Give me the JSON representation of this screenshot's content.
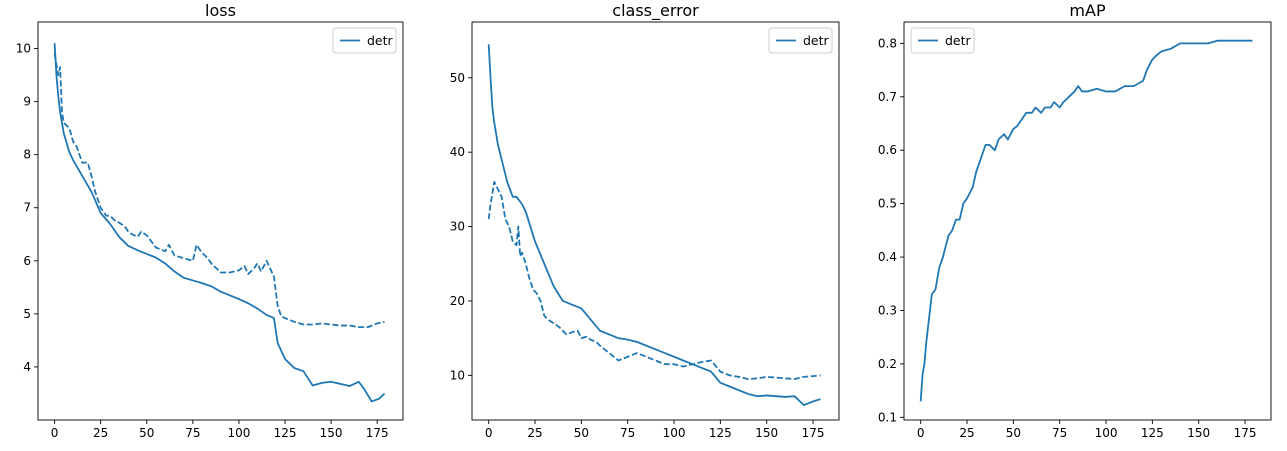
{
  "colors": {
    "series": "#1f77b4",
    "axes": "#000000",
    "legend_border": "#cccccc",
    "background": "#ffffff"
  },
  "chart_data": [
    {
      "type": "line",
      "title": "loss",
      "xlabel": "",
      "ylabel": "",
      "xlim": [
        -9,
        189
      ],
      "ylim": [
        3.0,
        10.5
      ],
      "xticks": [
        0,
        25,
        50,
        75,
        100,
        125,
        150,
        175
      ],
      "yticks": [
        4,
        5,
        6,
        7,
        8,
        9,
        10
      ],
      "grid": false,
      "legend": {
        "entries": [
          "detr"
        ],
        "placement": "top-right"
      },
      "series": [
        {
          "name": "detr",
          "style": "solid",
          "x": [
            0,
            1,
            2,
            3,
            5,
            8,
            10,
            15,
            20,
            25,
            30,
            35,
            40,
            45,
            50,
            55,
            60,
            65,
            70,
            75,
            80,
            85,
            90,
            95,
            100,
            105,
            110,
            115,
            119,
            121,
            125,
            130,
            135,
            140,
            145,
            150,
            155,
            160,
            165,
            168,
            172,
            176,
            179
          ],
          "y": [
            10.1,
            9.5,
            9.1,
            8.8,
            8.4,
            8.05,
            7.9,
            7.6,
            7.3,
            6.9,
            6.7,
            6.45,
            6.28,
            6.2,
            6.13,
            6.06,
            5.95,
            5.8,
            5.68,
            5.63,
            5.58,
            5.52,
            5.42,
            5.35,
            5.28,
            5.2,
            5.1,
            4.98,
            4.92,
            4.45,
            4.15,
            3.98,
            3.92,
            3.65,
            3.7,
            3.72,
            3.68,
            3.64,
            3.72,
            3.58,
            3.35,
            3.4,
            3.5
          ]
        },
        {
          "name": "detr",
          "style": "dashed",
          "x": [
            0,
            1,
            2,
            3,
            4,
            5,
            8,
            10,
            12,
            15,
            18,
            20,
            22,
            25,
            28,
            30,
            33,
            35,
            38,
            40,
            42,
            45,
            47,
            50,
            55,
            60,
            62,
            65,
            70,
            73,
            75,
            77,
            80,
            83,
            85,
            88,
            90,
            95,
            100,
            103,
            105,
            108,
            110,
            112,
            115,
            117,
            119,
            121,
            123,
            125,
            130,
            135,
            140,
            145,
            150,
            155,
            160,
            165,
            170,
            175,
            179
          ],
          "y": [
            9.9,
            9.7,
            9.5,
            9.65,
            8.8,
            8.6,
            8.5,
            8.25,
            8.15,
            7.85,
            7.85,
            7.6,
            7.3,
            7.0,
            6.85,
            6.85,
            6.75,
            6.72,
            6.65,
            6.55,
            6.5,
            6.45,
            6.55,
            6.48,
            6.25,
            6.18,
            6.3,
            6.1,
            6.05,
            6.02,
            6.0,
            6.3,
            6.15,
            6.05,
            5.95,
            5.85,
            5.78,
            5.78,
            5.82,
            5.9,
            5.75,
            5.85,
            5.95,
            5.8,
            6.0,
            5.85,
            5.7,
            5.15,
            4.95,
            4.92,
            4.85,
            4.8,
            4.8,
            4.82,
            4.8,
            4.78,
            4.78,
            4.75,
            4.75,
            4.82,
            4.85
          ]
        }
      ]
    },
    {
      "type": "line",
      "title": "class_error",
      "xlabel": "",
      "ylabel": "",
      "xlim": [
        -9,
        189
      ],
      "ylim": [
        4,
        57.5
      ],
      "xticks": [
        0,
        25,
        50,
        75,
        100,
        125,
        150,
        175
      ],
      "yticks": [
        10,
        20,
        30,
        40,
        50
      ],
      "grid": false,
      "legend": {
        "entries": [
          "detr"
        ],
        "placement": "top-right"
      },
      "series": [
        {
          "name": "detr",
          "style": "solid",
          "x": [
            0,
            1,
            2,
            3,
            5,
            8,
            10,
            13,
            15,
            18,
            20,
            25,
            30,
            35,
            40,
            45,
            50,
            55,
            60,
            65,
            70,
            75,
            80,
            85,
            90,
            95,
            100,
            105,
            110,
            115,
            120,
            125,
            130,
            135,
            140,
            145,
            150,
            155,
            160,
            165,
            170,
            175,
            179
          ],
          "y": [
            54.5,
            50,
            46,
            44,
            41,
            38,
            36,
            34,
            34,
            33,
            32,
            28,
            25,
            22,
            20,
            19.5,
            19,
            17.5,
            16,
            15.5,
            15,
            14.8,
            14.5,
            14,
            13.5,
            13,
            12.5,
            12,
            11.5,
            11,
            10.5,
            9,
            8.5,
            8,
            7.5,
            7.2,
            7.3,
            7.2,
            7.1,
            7.2,
            6,
            6.5,
            6.8
          ]
        },
        {
          "name": "detr",
          "style": "dashed",
          "x": [
            0,
            1,
            3,
            5,
            7,
            9,
            11,
            13,
            15,
            16,
            17,
            18,
            20,
            22,
            24,
            26,
            28,
            30,
            32,
            35,
            38,
            40,
            42,
            45,
            48,
            50,
            53,
            55,
            58,
            60,
            65,
            70,
            75,
            80,
            85,
            90,
            95,
            100,
            105,
            110,
            115,
            120,
            125,
            130,
            135,
            140,
            145,
            150,
            155,
            160,
            165,
            170,
            175,
            179
          ],
          "y": [
            31,
            33,
            36,
            35,
            34,
            31,
            30,
            28,
            27.5,
            30,
            26,
            26.5,
            25,
            23,
            21.5,
            21,
            20,
            18,
            17.5,
            17,
            16.5,
            16,
            15.5,
            15.8,
            16,
            15,
            15.2,
            14.8,
            14.5,
            14,
            13,
            12,
            12.5,
            13,
            12.5,
            12,
            11.5,
            11.5,
            11.2,
            11.5,
            11.8,
            12,
            10.5,
            10,
            9.8,
            9.5,
            9.6,
            9.8,
            9.7,
            9.6,
            9.5,
            9.8,
            9.9,
            10
          ]
        }
      ]
    },
    {
      "type": "line",
      "title": "mAP",
      "xlabel": "",
      "ylabel": "",
      "xlim": [
        -9,
        189
      ],
      "ylim": [
        0.095,
        0.84
      ],
      "xticks": [
        0,
        25,
        50,
        75,
        100,
        125,
        150,
        175
      ],
      "yticks": [
        0.1,
        0.2,
        0.3,
        0.4,
        0.5,
        0.6,
        0.7,
        0.8
      ],
      "grid": false,
      "legend": {
        "entries": [
          "detr"
        ],
        "placement": "top-left"
      },
      "series": [
        {
          "name": "detr",
          "style": "solid",
          "x": [
            0,
            1,
            2,
            3,
            4,
            5,
            6,
            8,
            10,
            12,
            15,
            17,
            19,
            21,
            23,
            25,
            28,
            30,
            32,
            35,
            37,
            40,
            42,
            45,
            47,
            50,
            52,
            55,
            57,
            60,
            62,
            65,
            67,
            70,
            72,
            75,
            77,
            80,
            83,
            85,
            87,
            90,
            95,
            100,
            105,
            110,
            115,
            120,
            122,
            125,
            128,
            130,
            135,
            140,
            145,
            150,
            155,
            160,
            165,
            170,
            175,
            179
          ],
          "y": [
            0.13,
            0.18,
            0.2,
            0.24,
            0.27,
            0.3,
            0.33,
            0.34,
            0.38,
            0.4,
            0.44,
            0.45,
            0.47,
            0.47,
            0.5,
            0.51,
            0.53,
            0.56,
            0.58,
            0.61,
            0.61,
            0.6,
            0.62,
            0.63,
            0.62,
            0.64,
            0.645,
            0.66,
            0.67,
            0.67,
            0.68,
            0.67,
            0.68,
            0.68,
            0.69,
            0.68,
            0.69,
            0.7,
            0.71,
            0.72,
            0.71,
            0.71,
            0.715,
            0.71,
            0.71,
            0.72,
            0.72,
            0.73,
            0.75,
            0.77,
            0.78,
            0.785,
            0.79,
            0.8,
            0.8,
            0.8,
            0.8,
            0.805,
            0.805,
            0.805,
            0.805,
            0.805
          ]
        }
      ]
    }
  ]
}
